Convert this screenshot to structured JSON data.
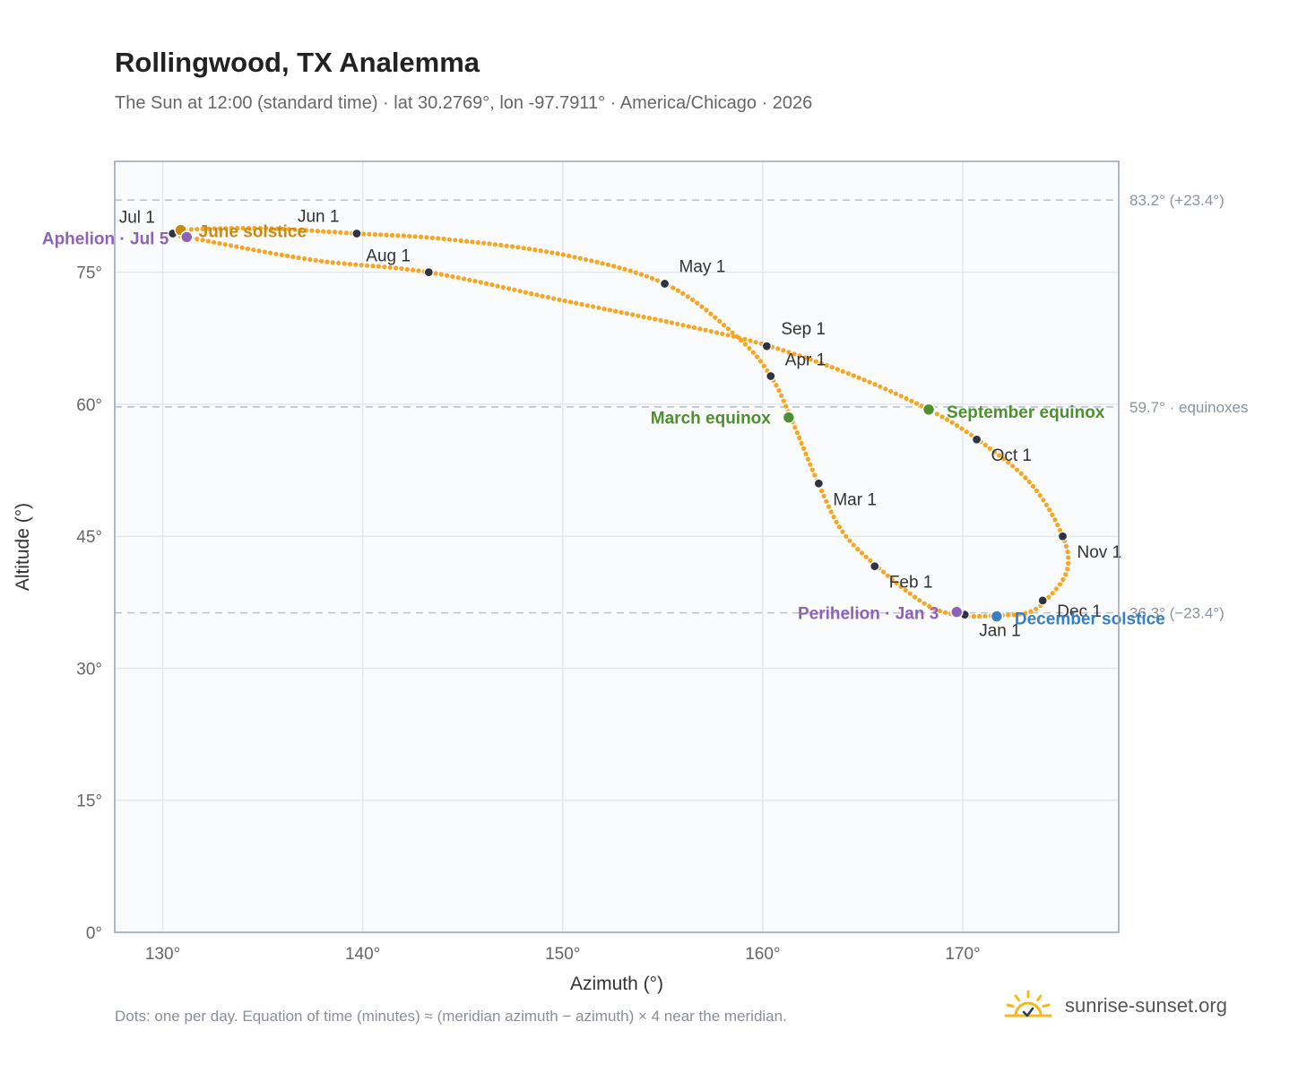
{
  "header": {
    "title": "Rollingwood, TX Analemma",
    "subtitle": "The Sun at 12:00 (standard time) · lat 30.2769°, lon -97.7911° · America/Chicago · 2026"
  },
  "footer": {
    "note": "Dots: one per day. Equation of time (minutes) ≈ (meridian azimuth − azimuth) × 4 near the meridian.",
    "brand": "sunrise-sunset.org"
  },
  "colors": {
    "curve": "#f5a623",
    "month_marker": "#2f3440",
    "solstice_june": "#c98a10",
    "solstice_december": "#3a7fc1",
    "equinox": "#4f8f2f",
    "apsis": "#8e63b5",
    "reference_line": "#b8c4d0",
    "plot_background": "#f9fbfd",
    "grid": "#e4e8ee",
    "frame": "#9aa4b2"
  },
  "chart_data": {
    "type": "scatter",
    "xlabel": "Azimuth (°)",
    "ylabel": "Altitude (°)",
    "xlim": [
      127.6,
      177.8
    ],
    "ylim": [
      0,
      87.6
    ],
    "xticks": [
      130,
      140,
      150,
      160,
      170
    ],
    "xtick_labels": [
      "130°",
      "140°",
      "150°",
      "160°",
      "170°"
    ],
    "yticks": [
      0,
      15,
      30,
      45,
      60,
      75
    ],
    "ytick_labels": [
      "0°",
      "15°",
      "30°",
      "45°",
      "60°",
      "75°"
    ],
    "grid": true,
    "path_anchors": [
      {
        "azimuth": 171.7,
        "altitude": 36.0
      },
      {
        "azimuth": 170.0,
        "altitude": 36.0
      },
      {
        "azimuth": 168.2,
        "altitude": 37.2
      },
      {
        "azimuth": 165.7,
        "altitude": 41.6
      },
      {
        "azimuth": 164.0,
        "altitude": 45.5
      },
      {
        "azimuth": 162.8,
        "altitude": 50.9
      },
      {
        "azimuth": 161.4,
        "altitude": 58.5
      },
      {
        "azimuth": 160.4,
        "altitude": 63.2
      },
      {
        "azimuth": 158.8,
        "altitude": 67.5
      },
      {
        "azimuth": 155.2,
        "altitude": 73.6
      },
      {
        "azimuth": 150.0,
        "altitude": 77.0
      },
      {
        "azimuth": 144.0,
        "altitude": 78.8
      },
      {
        "azimuth": 139.7,
        "altitude": 79.4
      },
      {
        "azimuth": 135.0,
        "altitude": 80.0
      },
      {
        "azimuth": 130.9,
        "altitude": 79.8
      },
      {
        "azimuth": 130.5,
        "altitude": 79.4
      },
      {
        "azimuth": 131.2,
        "altitude": 79.0
      },
      {
        "azimuth": 137.5,
        "altitude": 76.4
      },
      {
        "azimuth": 143.3,
        "altitude": 75.0
      },
      {
        "azimuth": 150.0,
        "altitude": 71.8
      },
      {
        "azimuth": 156.0,
        "altitude": 69.0
      },
      {
        "azimuth": 160.2,
        "altitude": 66.7
      },
      {
        "azimuth": 164.5,
        "altitude": 63.3
      },
      {
        "azimuth": 168.3,
        "altitude": 59.4
      },
      {
        "azimuth": 170.8,
        "altitude": 55.9
      },
      {
        "azimuth": 173.4,
        "altitude": 51.0
      },
      {
        "azimuth": 175.0,
        "altitude": 45.0
      },
      {
        "azimuth": 175.2,
        "altitude": 41.0
      },
      {
        "azimuth": 174.1,
        "altitude": 37.6
      },
      {
        "azimuth": 173.2,
        "altitude": 36.3
      },
      {
        "azimuth": 171.7,
        "altitude": 36.0
      }
    ],
    "month_markers": [
      {
        "label": "Jan 1",
        "azimuth": 170.1,
        "altitude": 36.1
      },
      {
        "label": "Feb 1",
        "azimuth": 165.6,
        "altitude": 41.6
      },
      {
        "label": "Mar 1",
        "azimuth": 162.8,
        "altitude": 51.0
      },
      {
        "label": "Apr 1",
        "azimuth": 160.4,
        "altitude": 63.2
      },
      {
        "label": "May 1",
        "azimuth": 155.1,
        "altitude": 73.7
      },
      {
        "label": "Jun 1",
        "azimuth": 139.7,
        "altitude": 79.4
      },
      {
        "label": "Jul 1",
        "azimuth": 130.5,
        "altitude": 79.4
      },
      {
        "label": "Aug 1",
        "azimuth": 143.3,
        "altitude": 75.0
      },
      {
        "label": "Sep 1",
        "azimuth": 160.2,
        "altitude": 66.6
      },
      {
        "label": "Oct 1",
        "azimuth": 170.7,
        "altitude": 56.0
      },
      {
        "label": "Nov 1",
        "azimuth": 175.0,
        "altitude": 45.0
      },
      {
        "label": "Dec 1",
        "azimuth": 174.0,
        "altitude": 37.7
      }
    ],
    "events": [
      {
        "label": "June solstice",
        "kind": "solstice_june",
        "azimuth": 130.9,
        "altitude": 79.8
      },
      {
        "label": "December solstice",
        "kind": "solstice_december",
        "azimuth": 171.7,
        "altitude": 35.9
      },
      {
        "label": "March equinox",
        "kind": "equinox",
        "azimuth": 161.3,
        "altitude": 58.5
      },
      {
        "label": "September equinox",
        "kind": "equinox",
        "azimuth": 168.3,
        "altitude": 59.4
      },
      {
        "label": "Aphelion · Jul 5",
        "kind": "apsis",
        "azimuth": 131.2,
        "altitude": 79.0
      },
      {
        "label": "Perihelion · Jan 3",
        "kind": "apsis",
        "azimuth": 169.7,
        "altitude": 36.4
      }
    ],
    "reference_lines": [
      {
        "label": "83.2° (+23.4°)",
        "altitude": 83.2
      },
      {
        "label": "59.7° · equinoxes",
        "altitude": 59.7
      },
      {
        "label": "36.3° (−23.4°)",
        "altitude": 36.3
      }
    ]
  }
}
